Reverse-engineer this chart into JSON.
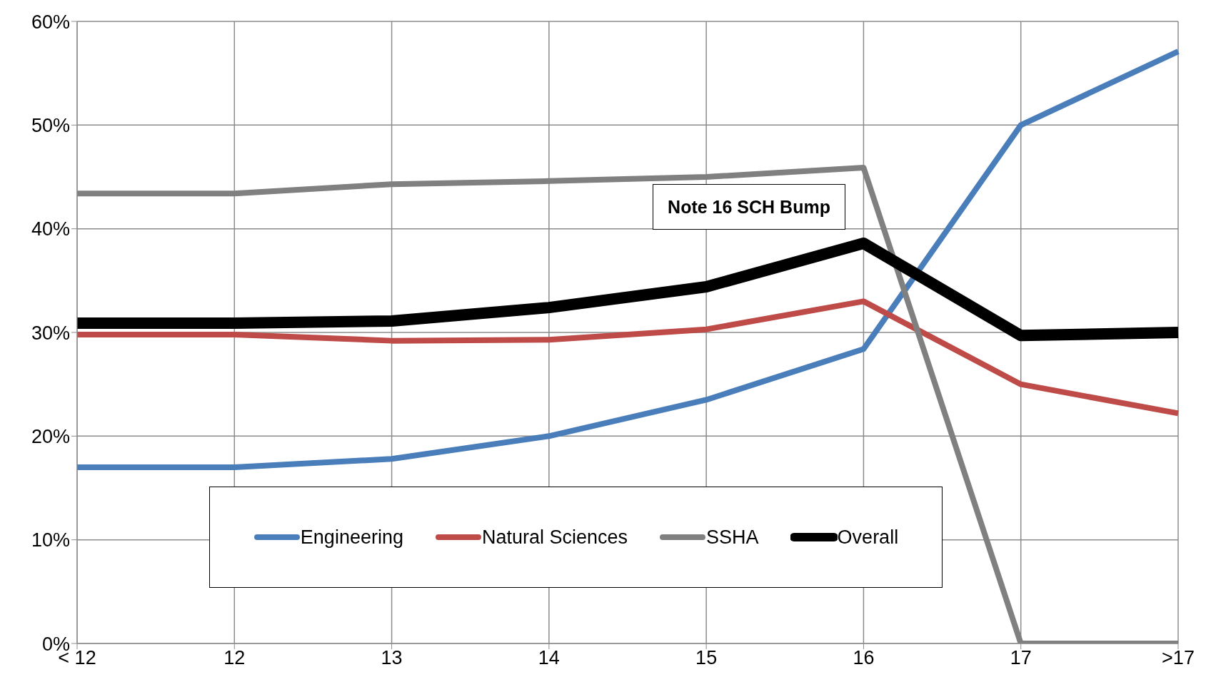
{
  "chart_data": {
    "type": "line",
    "categories": [
      "< 12",
      "12",
      "13",
      "14",
      "15",
      "16",
      "17",
      ">17"
    ],
    "series": [
      {
        "name": "Engineering",
        "color": "#4a7ebb",
        "values": [
          17.0,
          17.0,
          17.8,
          20.0,
          23.5,
          28.4,
          50.0,
          57.1
        ]
      },
      {
        "name": "Natural Sciences",
        "color": "#be4b48",
        "values": [
          29.8,
          29.8,
          29.2,
          29.3,
          30.3,
          33.0,
          25.0,
          22.2
        ]
      },
      {
        "name": "SSHA",
        "color": "#808080",
        "values": [
          43.4,
          43.4,
          44.3,
          44.6,
          45.0,
          45.9,
          0,
          0
        ]
      },
      {
        "name": "Overall",
        "color": "#000000",
        "values": [
          30.9,
          30.9,
          31.1,
          32.4,
          34.4,
          38.6,
          29.7,
          30.0
        ]
      }
    ],
    "ylim": [
      0,
      60
    ],
    "yticks": [
      {
        "value": 0,
        "label": "0%"
      },
      {
        "value": 10,
        "label": "10%"
      },
      {
        "value": 20,
        "label": "20%"
      },
      {
        "value": 30,
        "label": "30%"
      },
      {
        "value": 40,
        "label": "40%"
      },
      {
        "value": 50,
        "label": "50%"
      },
      {
        "value": 60,
        "label": "60%"
      }
    ],
    "annotations": [
      "Note 16 SCH Bump"
    ],
    "grid": true,
    "legend": "bottom",
    "marker": "none",
    "line_style": "solid"
  }
}
